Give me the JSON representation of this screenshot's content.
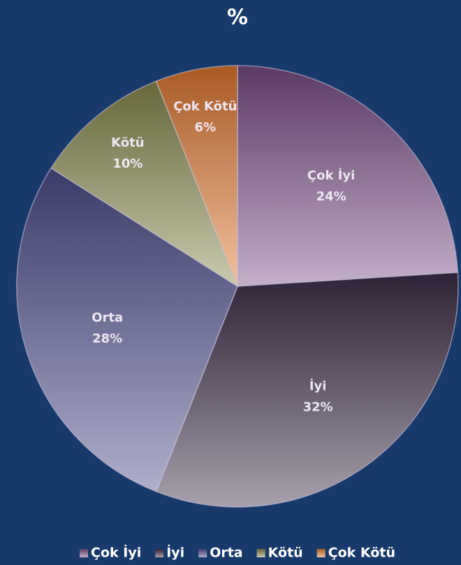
{
  "chart_data": {
    "type": "pie",
    "title": "%",
    "categories": [
      "Çok İyi",
      "İyi",
      "Orta",
      "Kötü",
      "Çok Kötü"
    ],
    "values": [
      24,
      32,
      28,
      10,
      6
    ],
    "value_labels": [
      "24%",
      "32%",
      "28%",
      "10%",
      "6%"
    ],
    "colors": [
      "#7a4f86",
      "#3e2f48",
      "#4f4f8c",
      "#8a8a4e",
      "#e0782c"
    ],
    "legend": "bottom"
  }
}
